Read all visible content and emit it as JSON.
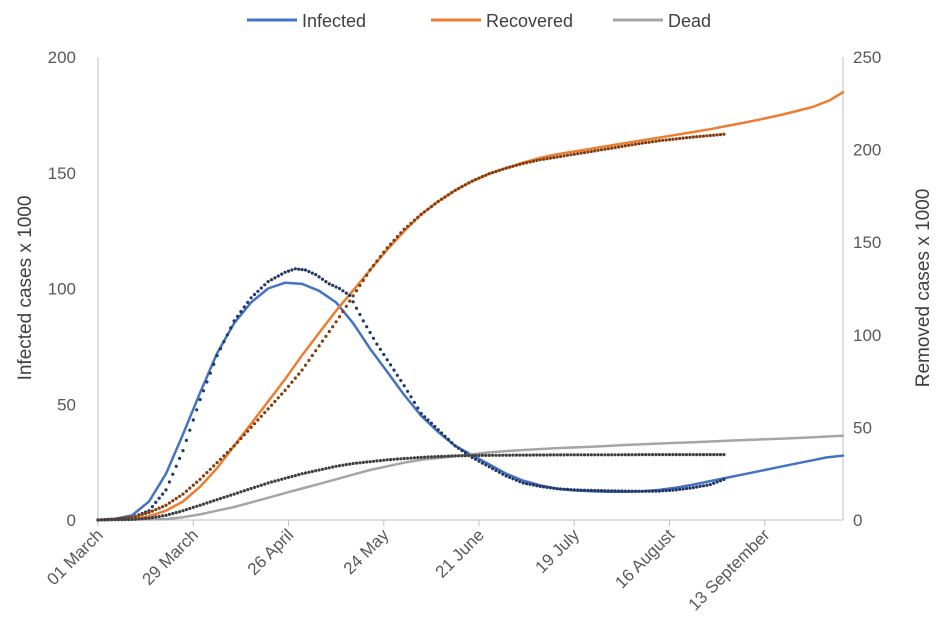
{
  "chart_data": {
    "type": "line",
    "legend": {
      "placement": "top",
      "entries": [
        {
          "name": "Infected",
          "color": "#4472C4"
        },
        {
          "name": "Recovered",
          "color": "#ED7D31"
        },
        {
          "name": "Dead",
          "color": "#A5A5A5"
        }
      ]
    },
    "x_axis": {
      "start": "2020-03-01",
      "end": "2020-10-06",
      "tick_labels": [
        "01 March",
        "29 March",
        "26 April",
        "24 May",
        "21 June",
        "19 July",
        "16 August",
        "13 September"
      ]
    },
    "y_left": {
      "label": "Infected cases x 1000",
      "range": [
        0,
        200
      ],
      "ticks": [
        0,
        50,
        100,
        150,
        200
      ]
    },
    "y_right": {
      "label": "Removed cases x 1000",
      "range": [
        0,
        250
      ],
      "ticks": [
        0,
        50,
        100,
        150,
        200,
        250
      ]
    },
    "grid": false,
    "series": [
      {
        "name": "Infected",
        "style": "line",
        "axis": "left",
        "color": "#4472C4",
        "points": [
          [
            "2020-03-01",
            0
          ],
          [
            "2020-03-06",
            0.5
          ],
          [
            "2020-03-11",
            2
          ],
          [
            "2020-03-16",
            8
          ],
          [
            "2020-03-21",
            20
          ],
          [
            "2020-03-26",
            37
          ],
          [
            "2020-03-31",
            55
          ],
          [
            "2020-04-05",
            72
          ],
          [
            "2020-04-10",
            85
          ],
          [
            "2020-04-15",
            94
          ],
          [
            "2020-04-20",
            100
          ],
          [
            "2020-04-25",
            102.5
          ],
          [
            "2020-04-30",
            102
          ],
          [
            "2020-05-05",
            99
          ],
          [
            "2020-05-10",
            94
          ],
          [
            "2020-05-15",
            85
          ],
          [
            "2020-05-20",
            74
          ],
          [
            "2020-05-25",
            64
          ],
          [
            "2020-05-30",
            54
          ],
          [
            "2020-06-04",
            45
          ],
          [
            "2020-06-09",
            38
          ],
          [
            "2020-06-14",
            32
          ],
          [
            "2020-06-19",
            28
          ],
          [
            "2020-06-24",
            24
          ],
          [
            "2020-06-29",
            20
          ],
          [
            "2020-07-04",
            17
          ],
          [
            "2020-07-09",
            15
          ],
          [
            "2020-07-14",
            13.5
          ],
          [
            "2020-07-19",
            12.8
          ],
          [
            "2020-07-24",
            12.4
          ],
          [
            "2020-07-29",
            12.2
          ],
          [
            "2020-08-03",
            12.2
          ],
          [
            "2020-08-08",
            12.4
          ],
          [
            "2020-08-13",
            13
          ],
          [
            "2020-08-18",
            14
          ],
          [
            "2020-08-23",
            15.3
          ],
          [
            "2020-08-28",
            16.8
          ],
          [
            "2020-09-02",
            18.3
          ],
          [
            "2020-09-07",
            19.8
          ],
          [
            "2020-09-12",
            21.3
          ],
          [
            "2020-09-17",
            22.8
          ],
          [
            "2020-09-22",
            24.3
          ],
          [
            "2020-09-27",
            25.8
          ],
          [
            "2020-10-01",
            27
          ],
          [
            "2020-10-06",
            27.8
          ]
        ]
      },
      {
        "name": "Recovered",
        "style": "line",
        "axis": "right",
        "color": "#ED7D31",
        "points": [
          [
            "2020-03-01",
            0
          ],
          [
            "2020-03-11",
            0.5
          ],
          [
            "2020-03-16",
            2
          ],
          [
            "2020-03-21",
            5
          ],
          [
            "2020-03-26",
            10
          ],
          [
            "2020-03-31",
            18
          ],
          [
            "2020-04-05",
            28
          ],
          [
            "2020-04-10",
            40
          ],
          [
            "2020-04-15",
            52
          ],
          [
            "2020-04-20",
            64
          ],
          [
            "2020-04-25",
            76
          ],
          [
            "2020-04-30",
            89
          ],
          [
            "2020-05-05",
            101
          ],
          [
            "2020-05-10",
            113
          ],
          [
            "2020-05-15",
            124
          ],
          [
            "2020-05-20",
            135
          ],
          [
            "2020-05-25",
            146
          ],
          [
            "2020-05-30",
            156
          ],
          [
            "2020-06-04",
            165
          ],
          [
            "2020-06-09",
            172
          ],
          [
            "2020-06-14",
            178
          ],
          [
            "2020-06-19",
            183
          ],
          [
            "2020-06-24",
            187
          ],
          [
            "2020-06-29",
            190
          ],
          [
            "2020-07-04",
            193
          ],
          [
            "2020-07-09",
            195.5
          ],
          [
            "2020-07-14",
            197.5
          ],
          [
            "2020-07-19",
            199
          ],
          [
            "2020-07-24",
            200.5
          ],
          [
            "2020-07-29",
            202
          ],
          [
            "2020-08-03",
            203.5
          ],
          [
            "2020-08-08",
            205
          ],
          [
            "2020-08-13",
            206.5
          ],
          [
            "2020-08-18",
            208
          ],
          [
            "2020-08-23",
            209.5
          ],
          [
            "2020-08-28",
            211
          ],
          [
            "2020-09-02",
            212.8
          ],
          [
            "2020-09-07",
            214.6
          ],
          [
            "2020-09-12",
            216.4
          ],
          [
            "2020-09-17",
            218.4
          ],
          [
            "2020-09-22",
            220.6
          ],
          [
            "2020-09-27",
            223
          ],
          [
            "2020-10-02",
            226.5
          ],
          [
            "2020-10-06",
            231
          ]
        ]
      },
      {
        "name": "Dead",
        "style": "line",
        "axis": "right",
        "color": "#A5A5A5",
        "points": [
          [
            "2020-03-01",
            0
          ],
          [
            "2020-03-21",
            0.5
          ],
          [
            "2020-03-26",
            1.5
          ],
          [
            "2020-03-31",
            3
          ],
          [
            "2020-04-05",
            5
          ],
          [
            "2020-04-10",
            7
          ],
          [
            "2020-04-15",
            9.5
          ],
          [
            "2020-04-20",
            12
          ],
          [
            "2020-04-25",
            14.5
          ],
          [
            "2020-04-30",
            17
          ],
          [
            "2020-05-05",
            19.5
          ],
          [
            "2020-05-10",
            22
          ],
          [
            "2020-05-15",
            24.5
          ],
          [
            "2020-05-20",
            27
          ],
          [
            "2020-05-25",
            29
          ],
          [
            "2020-05-30",
            31
          ],
          [
            "2020-06-04",
            32.5
          ],
          [
            "2020-06-09",
            33.5
          ],
          [
            "2020-06-14",
            34.5
          ],
          [
            "2020-06-19",
            35.5
          ],
          [
            "2020-06-24",
            36.5
          ],
          [
            "2020-06-29",
            37.2
          ],
          [
            "2020-07-04",
            37.8
          ],
          [
            "2020-07-14",
            38.8
          ],
          [
            "2020-07-24",
            39.6
          ],
          [
            "2020-08-03",
            40.5
          ],
          [
            "2020-08-13",
            41.3
          ],
          [
            "2020-08-23",
            42
          ],
          [
            "2020-09-02",
            42.8
          ],
          [
            "2020-09-12",
            43.5
          ],
          [
            "2020-09-22",
            44.2
          ],
          [
            "2020-10-06",
            45.5
          ]
        ]
      },
      {
        "name": "",
        "style": "dots",
        "axis": "left",
        "color": "#203864",
        "points": [
          [
            "2020-03-01",
            0
          ],
          [
            "2020-03-06",
            0.3
          ],
          [
            "2020-03-11",
            1
          ],
          [
            "2020-03-16",
            4
          ],
          [
            "2020-03-21",
            13
          ],
          [
            "2020-03-26",
            30
          ],
          [
            "2020-03-31",
            52
          ],
          [
            "2020-04-05",
            71
          ],
          [
            "2020-04-10",
            86
          ],
          [
            "2020-04-15",
            96
          ],
          [
            "2020-04-20",
            103
          ],
          [
            "2020-04-25",
            107
          ],
          [
            "2020-04-28",
            108.5
          ],
          [
            "2020-05-01",
            108
          ],
          [
            "2020-05-04",
            106
          ],
          [
            "2020-05-08",
            102
          ],
          [
            "2020-05-11",
            100
          ],
          [
            "2020-05-14",
            97
          ],
          [
            "2020-05-18",
            86
          ],
          [
            "2020-05-22",
            76
          ],
          [
            "2020-05-26",
            67
          ],
          [
            "2020-05-30",
            58
          ],
          [
            "2020-06-04",
            46
          ],
          [
            "2020-06-09",
            39
          ],
          [
            "2020-06-14",
            32
          ],
          [
            "2020-06-19",
            27
          ],
          [
            "2020-06-24",
            23
          ],
          [
            "2020-06-29",
            19
          ],
          [
            "2020-07-04",
            16
          ],
          [
            "2020-07-09",
            14.5
          ],
          [
            "2020-07-14",
            13.5
          ],
          [
            "2020-07-19",
            13
          ],
          [
            "2020-07-24",
            12.8
          ],
          [
            "2020-07-29",
            12.6
          ],
          [
            "2020-08-03",
            12.5
          ],
          [
            "2020-08-08",
            12.4
          ],
          [
            "2020-08-13",
            12.5
          ],
          [
            "2020-08-18",
            13
          ],
          [
            "2020-08-23",
            14
          ],
          [
            "2020-08-28",
            15.3
          ],
          [
            "2020-09-01",
            17.5
          ]
        ]
      },
      {
        "name": "",
        "style": "dots",
        "axis": "right",
        "color": "#843C0C",
        "points": [
          [
            "2020-03-01",
            0
          ],
          [
            "2020-03-06",
            0.5
          ],
          [
            "2020-03-11",
            1.5
          ],
          [
            "2020-03-16",
            4
          ],
          [
            "2020-03-21",
            8
          ],
          [
            "2020-03-26",
            14
          ],
          [
            "2020-03-31",
            22
          ],
          [
            "2020-04-05",
            31
          ],
          [
            "2020-04-10",
            40
          ],
          [
            "2020-04-15",
            50
          ],
          [
            "2020-04-20",
            60
          ],
          [
            "2020-04-25",
            70
          ],
          [
            "2020-04-30",
            81
          ],
          [
            "2020-05-05",
            94
          ],
          [
            "2020-05-10",
            107
          ],
          [
            "2020-05-15",
            121
          ],
          [
            "2020-05-20",
            135
          ],
          [
            "2020-05-25",
            147
          ],
          [
            "2020-05-30",
            157
          ],
          [
            "2020-06-04",
            165
          ],
          [
            "2020-06-09",
            172
          ],
          [
            "2020-06-14",
            178
          ],
          [
            "2020-06-19",
            183
          ],
          [
            "2020-06-24",
            187
          ],
          [
            "2020-06-29",
            190
          ],
          [
            "2020-07-04",
            192.5
          ],
          [
            "2020-07-09",
            194.5
          ],
          [
            "2020-07-14",
            196
          ],
          [
            "2020-07-19",
            197.5
          ],
          [
            "2020-07-24",
            199
          ],
          [
            "2020-07-29",
            200.5
          ],
          [
            "2020-08-03",
            202
          ],
          [
            "2020-08-08",
            203.5
          ],
          [
            "2020-08-13",
            204.8
          ],
          [
            "2020-08-18",
            205.8
          ],
          [
            "2020-08-23",
            206.8
          ],
          [
            "2020-08-28",
            207.6
          ],
          [
            "2020-09-01",
            208.3
          ]
        ]
      },
      {
        "name": "",
        "style": "dots",
        "axis": "right",
        "color": "#3F3F3F",
        "points": [
          [
            "2020-03-01",
            0
          ],
          [
            "2020-03-11",
            0.3
          ],
          [
            "2020-03-16",
            1
          ],
          [
            "2020-03-21",
            2.5
          ],
          [
            "2020-03-26",
            5
          ],
          [
            "2020-03-31",
            8
          ],
          [
            "2020-04-05",
            11
          ],
          [
            "2020-04-10",
            14
          ],
          [
            "2020-04-15",
            17
          ],
          [
            "2020-04-20",
            20
          ],
          [
            "2020-04-25",
            22.5
          ],
          [
            "2020-04-30",
            25
          ],
          [
            "2020-05-05",
            27
          ],
          [
            "2020-05-10",
            29
          ],
          [
            "2020-05-15",
            30.5
          ],
          [
            "2020-05-20",
            31.5
          ],
          [
            "2020-05-25",
            32.5
          ],
          [
            "2020-05-30",
            33.2
          ],
          [
            "2020-06-04",
            33.8
          ],
          [
            "2020-06-09",
            34.3
          ],
          [
            "2020-06-14",
            34.6
          ],
          [
            "2020-06-19",
            34.8
          ],
          [
            "2020-06-29",
            35
          ],
          [
            "2020-07-09",
            35.1
          ],
          [
            "2020-07-19",
            35.2
          ],
          [
            "2020-07-29",
            35.2
          ],
          [
            "2020-08-08",
            35.3
          ],
          [
            "2020-08-18",
            35.3
          ],
          [
            "2020-09-01",
            35.3
          ]
        ]
      }
    ]
  }
}
